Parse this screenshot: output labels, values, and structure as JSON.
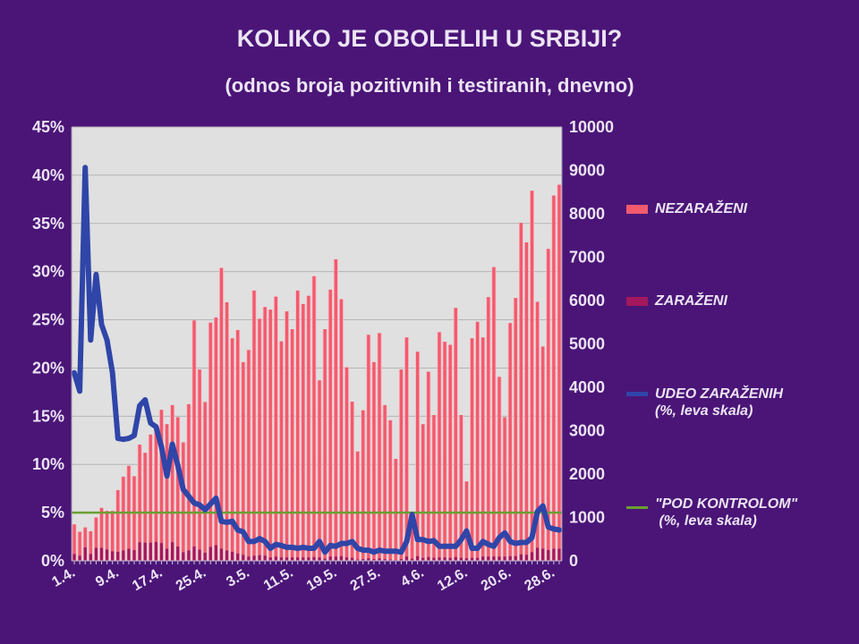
{
  "chart_data": {
    "type": "bar",
    "title": "KOLIKO JE OBOLELIH U SRBIJI?",
    "subtitle": "(odnos broja pozitivnih i testiranih, dnevno)",
    "x_tick_labels": [
      "1.4.",
      "9.4.",
      "17.4.",
      "25.4.",
      "3.5.",
      "11.5.",
      "19.5.",
      "27.5.",
      "4.6.",
      "12.6.",
      "20.6.",
      "28.6."
    ],
    "x_tick_every_days": 8,
    "y_left": {
      "range": [
        0,
        45
      ],
      "ticks": [
        "0%",
        "5%",
        "10%",
        "15%",
        "20%",
        "25%",
        "30%",
        "35%",
        "40%",
        "45%"
      ]
    },
    "y_right": {
      "range": [
        0,
        10000
      ],
      "ticks": [
        "0",
        "1000",
        "2000",
        "3000",
        "4000",
        "5000",
        "6000",
        "7000",
        "8000",
        "9000",
        "10000"
      ]
    },
    "grid": true,
    "legend_position": "right",
    "stacked": true,
    "series": [
      {
        "name": "NEZARAŽENI",
        "type": "bar",
        "axis": "right",
        "color": "#f25a6e",
        "values": [
          680,
          550,
          460,
          520,
          700,
          920,
          890,
          930,
          1420,
          1700,
          1910,
          1700,
          2250,
          2070,
          2490,
          2700,
          3070,
          2870,
          3160,
          2980,
          2530,
          3370,
          5210,
          4150,
          3470,
          5170,
          5250,
          6470,
          5720,
          4920,
          5150,
          4440,
          4760,
          6110,
          5450,
          5730,
          5710,
          5990,
          4980,
          5670,
          5260,
          6150,
          5840,
          6030,
          6470,
          4080,
          5290,
          6150,
          6850,
          5920,
          4380,
          3600,
          2490,
          3430,
          5150,
          4540,
          5190,
          3550,
          3210,
          2330,
          4370,
          5050,
          950,
          4710,
          3080,
          4270,
          3290,
          5190,
          4970,
          4910,
          5740,
          3290,
          1770,
          5060,
          5440,
          5050,
          5980,
          6670,
          4140,
          3210,
          5370,
          5950,
          7640,
          7200,
          8330,
          5670,
          4660,
          6940,
          8140,
          8390
        ]
      },
      {
        "name": "ZARAŽENI",
        "type": "bar",
        "axis": "right",
        "color": "#a3185c",
        "values": [
          160,
          120,
          310,
          160,
          300,
          300,
          260,
          220,
          210,
          240,
          280,
          250,
          430,
          420,
          420,
          440,
          410,
          280,
          430,
          330,
          200,
          240,
          330,
          260,
          190,
          320,
          360,
          280,
          240,
          210,
          170,
          140,
          100,
          120,
          130,
          120,
          80,
          100,
          80,
          80,
          80,
          80,
          80,
          80,
          90,
          80,
          50,
          100,
          100,
          110,
          80,
          70,
          30,
          40,
          60,
          40,
          60,
          40,
          30,
          20,
          40,
          100,
          50,
          110,
          70,
          90,
          70,
          80,
          80,
          70,
          90,
          70,
          60,
          70,
          70,
          100,
          100,
          100,
          100,
          100,
          110,
          110,
          150,
          140,
          200,
          300,
          280,
          250,
          280,
          280
        ]
      },
      {
        "name": "UDEO ZARAŽENIH\n(%, leva skala)",
        "type": "line",
        "axis": "left",
        "color": "#2f45a8",
        "values": [
          19.5,
          17.6,
          40.8,
          22.9,
          29.7,
          24.5,
          22.9,
          19.5,
          12.7,
          12.6,
          12.7,
          13.0,
          16.1,
          16.7,
          14.3,
          13.9,
          11.8,
          8.8,
          12.1,
          9.9,
          7.4,
          6.7,
          6.0,
          5.8,
          5.3,
          5.9,
          6.5,
          4.1,
          4.0,
          4.1,
          3.2,
          3.0,
          2.0,
          2.0,
          2.3,
          2.0,
          1.3,
          1.7,
          1.6,
          1.4,
          1.4,
          1.3,
          1.4,
          1.3,
          1.3,
          2.0,
          0.9,
          1.6,
          1.5,
          1.8,
          1.8,
          2.0,
          1.3,
          1.1,
          1.1,
          0.9,
          1.1,
          1.0,
          1.0,
          1.0,
          0.9,
          2.0,
          4.8,
          2.2,
          2.2,
          2.0,
          2.1,
          1.5,
          1.5,
          1.5,
          1.5,
          2.2,
          3.1,
          1.3,
          1.3,
          2.0,
          1.7,
          1.5,
          2.4,
          2.9,
          2.0,
          1.8,
          1.9,
          1.9,
          2.4,
          5.1,
          5.7,
          3.5,
          3.3,
          3.2
        ]
      },
      {
        "name": "\"POD KONTROLOM\"\n(%, leva skala)",
        "type": "line",
        "axis": "left",
        "color": "#6aa032",
        "constant": 5
      }
    ]
  },
  "legend": {
    "items": [
      {
        "line1": "NEZARAŽENI",
        "line2": ""
      },
      {
        "line1": "ZARAŽENI",
        "line2": ""
      },
      {
        "line1": "UDEO ZARAŽENIH",
        "line2": "(%, leva skala)"
      },
      {
        "line1": "\"POD KONTROLOM\"",
        "line2": " (%, leva skala)"
      }
    ]
  },
  "colors": {
    "background": "#4a1577",
    "plot_background": "#e0e0e0",
    "text": "#ece4f4",
    "grid": "#b4b4b4"
  }
}
